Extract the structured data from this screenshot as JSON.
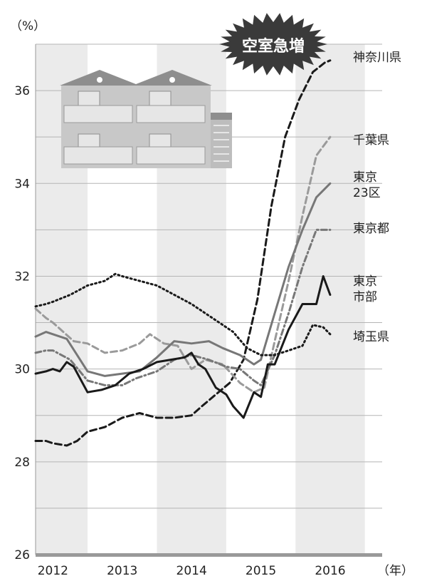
{
  "chart_data": {
    "type": "line",
    "unit_label": "（%）",
    "year_unit": "（年）",
    "badge": "空室急増",
    "ylim": [
      26,
      37
    ],
    "yticks": [
      26,
      28,
      30,
      32,
      34,
      36
    ],
    "xlim": [
      2011.75,
      2016.75
    ],
    "year_ticks": [
      2012,
      2013,
      2014,
      2015,
      2016
    ],
    "shaded_years": [
      2012,
      2014,
      2016
    ],
    "grid": true,
    "colors": {
      "black": "#1a1a1a",
      "dark_gray": "#555555",
      "mid_gray": "#8c8c8c",
      "light_gray": "#9a9a9a",
      "shade": "#ebebeb",
      "axis": "#999999"
    },
    "series": [
      {
        "name": "神奈川県",
        "style": "dashed",
        "color": "#1a1a1a",
        "x": [
          2011.75,
          2011.9,
          2012.0,
          2012.2,
          2012.35,
          2012.5,
          2012.75,
          2013.0,
          2013.25,
          2013.5,
          2013.75,
          2014.0,
          2014.15,
          2014.35,
          2014.55,
          2014.75,
          2014.95,
          2015.15,
          2015.35,
          2015.55,
          2015.75,
          2015.92,
          2016.0
        ],
        "y": [
          28.45,
          28.45,
          28.4,
          28.35,
          28.45,
          28.65,
          28.75,
          28.95,
          29.05,
          28.95,
          28.95,
          29.0,
          29.2,
          29.45,
          29.7,
          30.2,
          31.5,
          33.5,
          35.0,
          35.8,
          36.4,
          36.6,
          36.65
        ]
      },
      {
        "name": "千葉県",
        "style": "dashed",
        "color": "#9a9a9a",
        "x": [
          2011.75,
          2011.9,
          2012.0,
          2012.15,
          2012.3,
          2012.5,
          2012.75,
          2013.0,
          2013.25,
          2013.4,
          2013.6,
          2013.8,
          2014.0,
          2014.2,
          2014.45,
          2014.7,
          2014.9,
          2015.05,
          2015.2,
          2015.4,
          2015.6,
          2015.8,
          2016.0
        ],
        "y": [
          31.3,
          31.1,
          31.0,
          30.8,
          30.6,
          30.55,
          30.35,
          30.4,
          30.55,
          30.75,
          30.55,
          30.5,
          30.0,
          30.2,
          30.1,
          29.7,
          29.5,
          29.6,
          30.6,
          31.9,
          33.3,
          34.6,
          35.0
        ]
      },
      {
        "name": "東京23区",
        "style": "solid",
        "color": "#777777",
        "x": [
          2011.75,
          2011.9,
          2012.0,
          2012.2,
          2012.35,
          2012.5,
          2012.75,
          2013.0,
          2013.25,
          2013.5,
          2013.75,
          2014.0,
          2014.25,
          2014.45,
          2014.7,
          2014.9,
          2015.0,
          2015.2,
          2015.4,
          2015.6,
          2015.8,
          2016.0
        ],
        "y": [
          30.7,
          30.8,
          30.75,
          30.65,
          30.3,
          29.95,
          29.85,
          29.9,
          29.95,
          30.25,
          30.6,
          30.55,
          30.6,
          30.45,
          30.3,
          30.1,
          30.2,
          31.2,
          32.2,
          33.0,
          33.7,
          34.0
        ]
      },
      {
        "name": "東京都",
        "style": "dashdot",
        "color": "#777777",
        "x": [
          2011.75,
          2011.9,
          2012.0,
          2012.25,
          2012.5,
          2012.75,
          2013.0,
          2013.2,
          2013.5,
          2013.75,
          2014.0,
          2014.25,
          2014.5,
          2014.7,
          2014.9,
          2015.0,
          2015.2,
          2015.4,
          2015.6,
          2015.8,
          2016.0
        ],
        "y": [
          30.35,
          30.4,
          30.4,
          30.2,
          29.75,
          29.65,
          29.65,
          29.8,
          29.95,
          30.2,
          30.3,
          30.2,
          30.05,
          30.0,
          29.75,
          29.65,
          30.3,
          31.2,
          32.2,
          33.0,
          33.0
        ]
      },
      {
        "name": "東京市部",
        "style": "solid",
        "color": "#1a1a1a",
        "x": [
          2011.75,
          2011.9,
          2012.0,
          2012.1,
          2012.2,
          2012.3,
          2012.5,
          2012.7,
          2012.9,
          2013.1,
          2013.3,
          2013.5,
          2013.7,
          2013.9,
          2014.0,
          2014.1,
          2014.2,
          2014.35,
          2014.5,
          2014.6,
          2014.75,
          2014.9,
          2015.0,
          2015.1,
          2015.2,
          2015.4,
          2015.6,
          2015.8,
          2015.9,
          2016.0
        ],
        "y": [
          29.9,
          29.95,
          30.0,
          29.95,
          30.15,
          30.05,
          29.5,
          29.55,
          29.65,
          29.9,
          30.0,
          30.15,
          30.2,
          30.25,
          30.35,
          30.1,
          30.0,
          29.6,
          29.45,
          29.2,
          28.95,
          29.5,
          29.4,
          30.1,
          30.1,
          30.85,
          31.4,
          31.4,
          32.0,
          31.6
        ]
      },
      {
        "name": "埼玉県",
        "style": "dotted",
        "color": "#1a1a1a",
        "x": [
          2011.75,
          2011.9,
          2012.0,
          2012.25,
          2012.5,
          2012.75,
          2012.9,
          2013.0,
          2013.25,
          2013.5,
          2013.75,
          2014.0,
          2014.2,
          2014.45,
          2014.6,
          2014.8,
          2015.0,
          2015.2,
          2015.4,
          2015.6,
          2015.75,
          2015.9,
          2016.0
        ],
        "y": [
          31.35,
          31.4,
          31.45,
          31.6,
          31.8,
          31.9,
          32.05,
          32.0,
          31.9,
          31.8,
          31.6,
          31.4,
          31.2,
          30.95,
          30.8,
          30.45,
          30.3,
          30.3,
          30.4,
          30.5,
          30.95,
          30.9,
          30.75
        ]
      }
    ],
    "labels": [
      {
        "series": "神奈川県",
        "lines": [
          "神奈川県"
        ]
      },
      {
        "series": "千葉県",
        "lines": [
          "千葉県"
        ]
      },
      {
        "series": "東京23区",
        "lines": [
          "東京",
          "23区"
        ]
      },
      {
        "series": "東京都",
        "lines": [
          "東京都"
        ]
      },
      {
        "series": "東京市部",
        "lines": [
          "東京",
          "市部"
        ]
      },
      {
        "series": "埼玉県",
        "lines": [
          "埼玉県"
        ]
      }
    ]
  }
}
